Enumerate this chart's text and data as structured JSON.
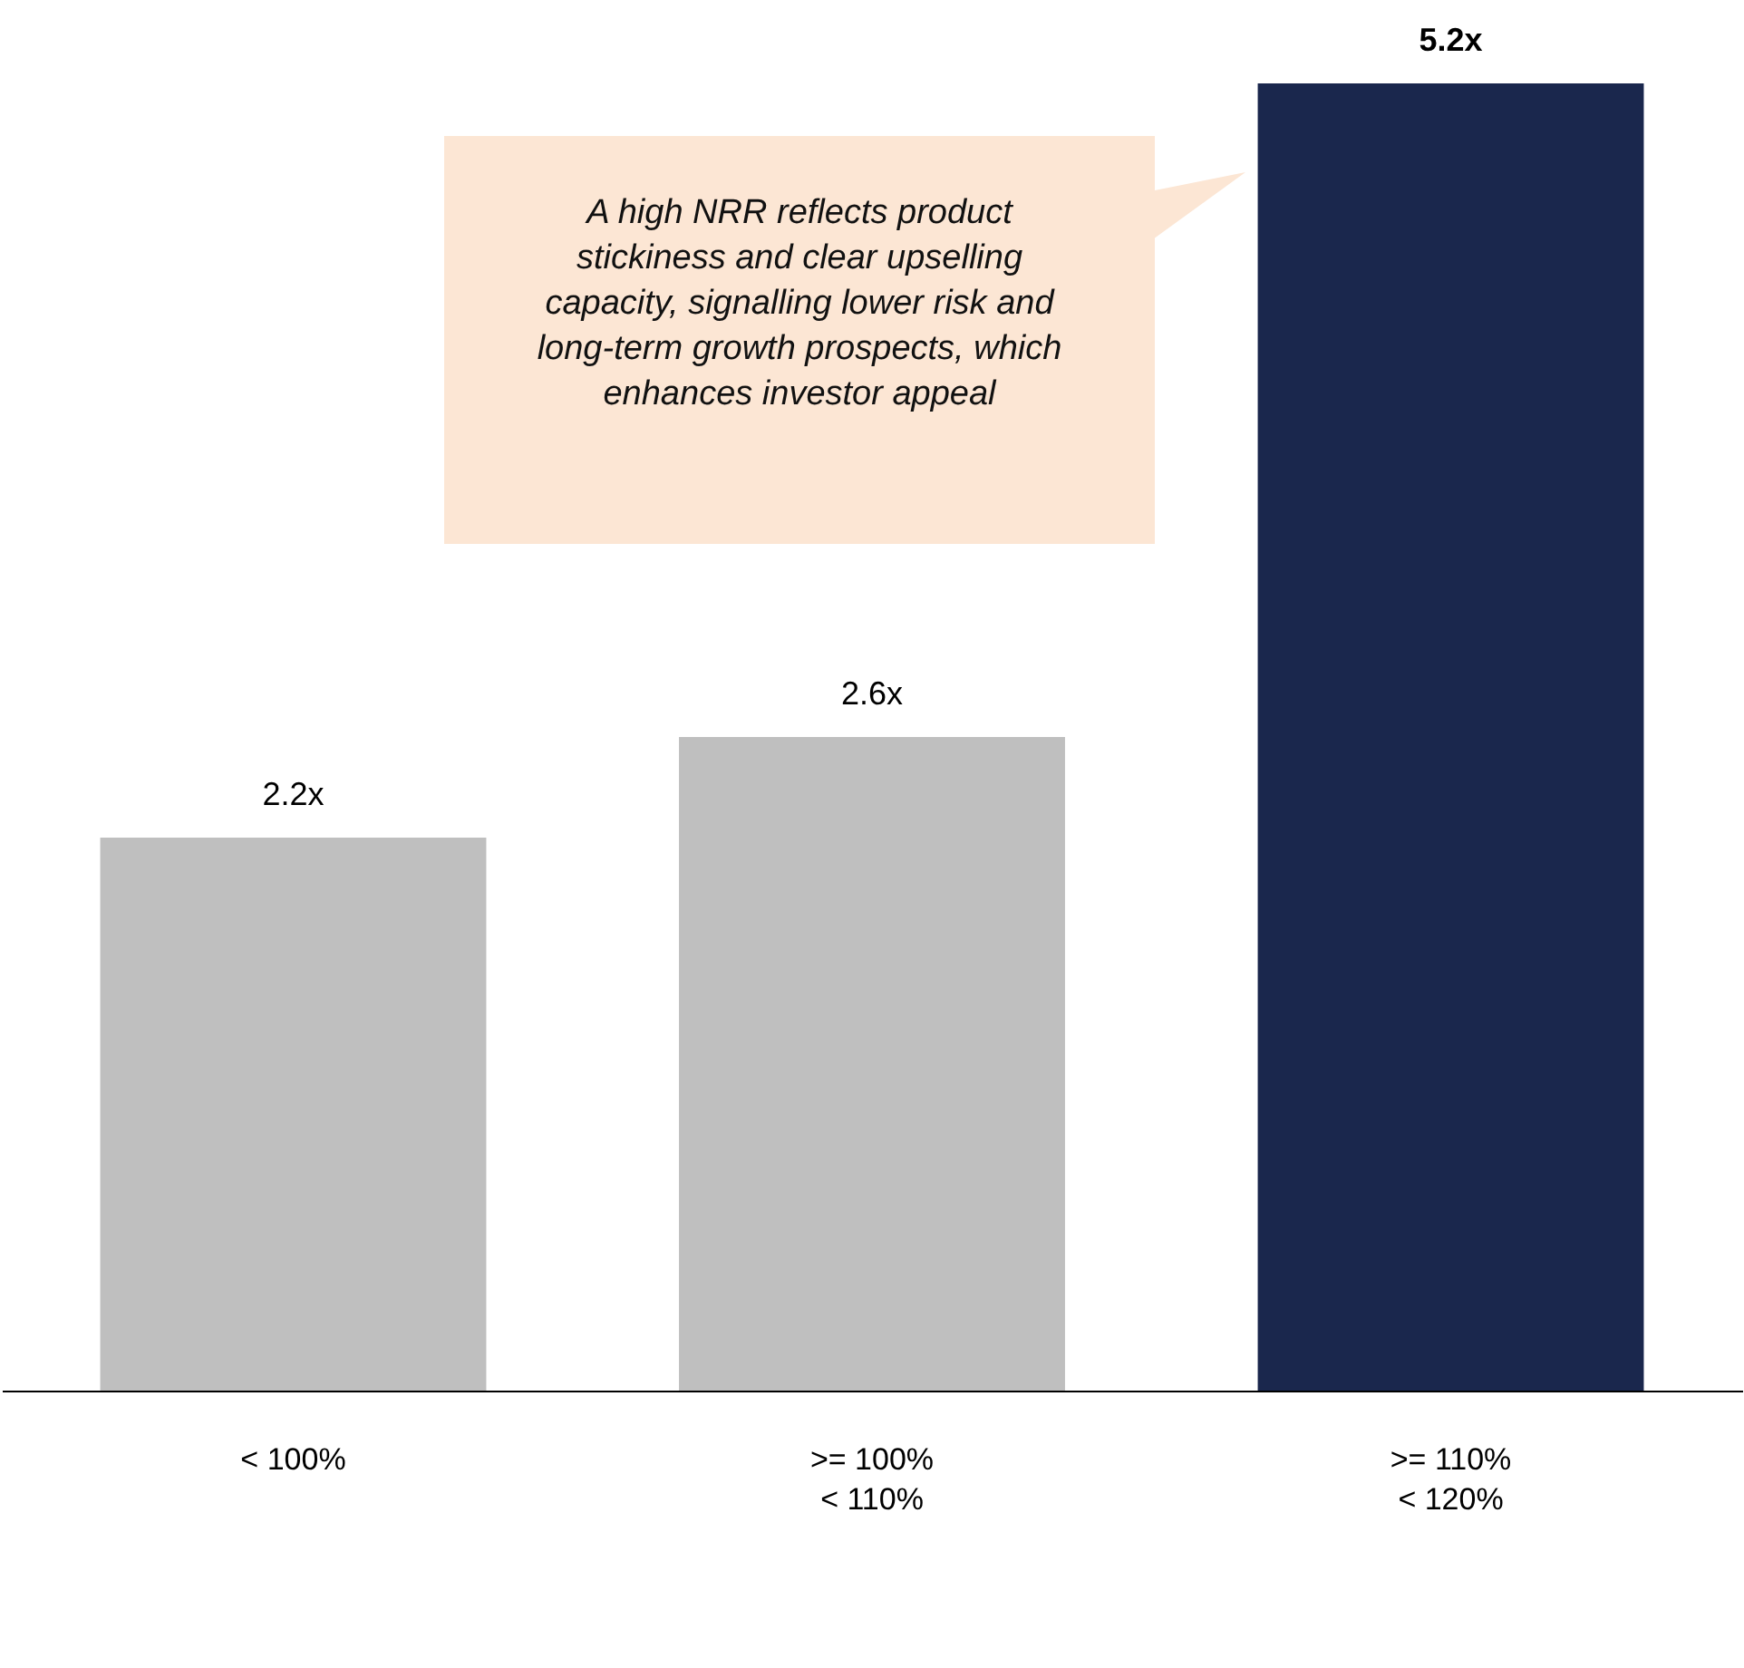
{
  "chart_data": {
    "type": "bar",
    "categories": [
      "< 100%",
      ">= 100%\n< 110%",
      ">= 110%\n< 120%"
    ],
    "values": [
      2.2,
      2.6,
      5.2
    ],
    "colors": [
      "#bfbfbf",
      "#bfbfbf",
      "#1a274d"
    ],
    "value_labels": [
      "2.2x",
      "2.6x",
      "5.2x"
    ],
    "annotations": [
      "A high NRR reflects product stickiness and clear upselling capacity, signalling lower risk and long-term growth prospects, which enhances investor appeal"
    ],
    "grid": false
  }
}
